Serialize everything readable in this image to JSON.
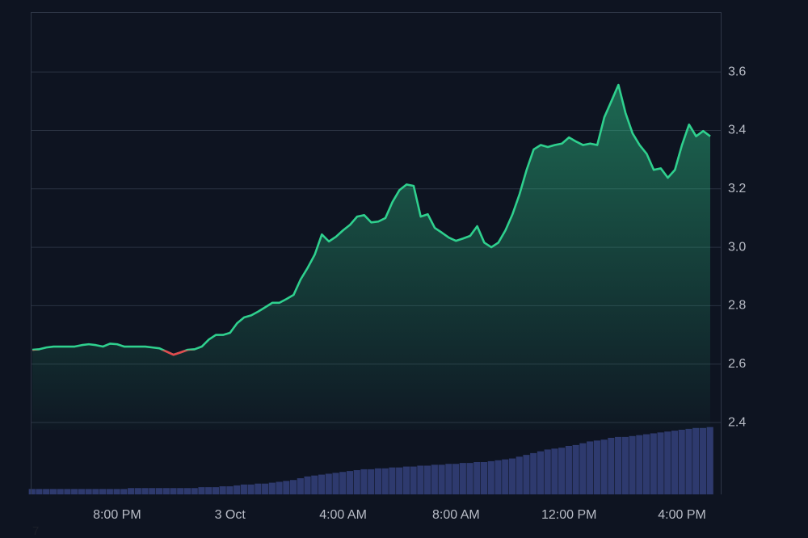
{
  "chart_data": {
    "type": "line",
    "categories": [
      null,
      null,
      null,
      null,
      null,
      null,
      null,
      null,
      null,
      null,
      null,
      null,
      "8:00 PM",
      null,
      null,
      null,
      null,
      null,
      null,
      null,
      null,
      null,
      null,
      null,
      null,
      null,
      null,
      null,
      "3 Oct",
      null,
      null,
      null,
      null,
      null,
      null,
      null,
      null,
      null,
      null,
      null,
      null,
      null,
      null,
      null,
      "4:00 AM",
      null,
      null,
      null,
      null,
      null,
      null,
      null,
      null,
      null,
      null,
      null,
      null,
      null,
      null,
      null,
      "8:00 AM",
      null,
      null,
      null,
      null,
      null,
      null,
      null,
      null,
      null,
      null,
      null,
      null,
      null,
      null,
      null,
      "12:00 PM",
      null,
      null,
      null,
      null,
      null,
      null,
      null,
      null,
      null,
      null,
      null,
      null,
      null,
      null,
      null,
      "4:00 PM",
      null,
      null,
      null,
      null
    ],
    "series": [
      {
        "color": "#2fd08e",
        "down_color": "#e5484d",
        "values": [
          2.649,
          2.651,
          2.657,
          2.66,
          2.66,
          2.66,
          2.66,
          2.665,
          2.668,
          2.665,
          2.66,
          2.67,
          2.668,
          2.66,
          2.66,
          2.66,
          2.66,
          2.657,
          2.654,
          2.643,
          2.632,
          2.64,
          2.649,
          2.651,
          2.66,
          2.684,
          2.7,
          2.7,
          2.707,
          2.74,
          2.76,
          2.767,
          2.78,
          2.795,
          2.81,
          2.81,
          2.823,
          2.837,
          2.89,
          2.93,
          2.975,
          3.044,
          3.02,
          3.036,
          3.058,
          3.077,
          3.105,
          3.11,
          3.085,
          3.088,
          3.1,
          3.155,
          3.196,
          3.215,
          3.21,
          3.105,
          3.113,
          3.066,
          3.05,
          3.033,
          3.022,
          3.03,
          3.039,
          3.072,
          3.016,
          3.0,
          3.016,
          3.058,
          3.113,
          3.182,
          3.265,
          3.335,
          3.35,
          3.343,
          3.35,
          3.355,
          3.376,
          3.362,
          3.35,
          3.355,
          3.35,
          3.445,
          3.5,
          3.556,
          3.46,
          3.39,
          3.35,
          3.32,
          3.265,
          3.27,
          3.238,
          3.265,
          3.35,
          3.42,
          3.38,
          3.398,
          3.38
        ]
      },
      {
        "type": "bar",
        "color": "#2e3a6e",
        "axis": "volume",
        "values": [
          6,
          6,
          6,
          6,
          6,
          6,
          6,
          6,
          6,
          6,
          6,
          6,
          6,
          6,
          7,
          7,
          7,
          7,
          7,
          7,
          7,
          7,
          7,
          7,
          8,
          8,
          8,
          9,
          9,
          10,
          11,
          11,
          12,
          12,
          13,
          14,
          15,
          16,
          18,
          20,
          21,
          22,
          23,
          24,
          25,
          26,
          27,
          28,
          28,
          29,
          29,
          30,
          30,
          31,
          31,
          32,
          32,
          33,
          33,
          34,
          34,
          35,
          35,
          36,
          36,
          37,
          38,
          39,
          40,
          42,
          44,
          46,
          48,
          50,
          51,
          52,
          54,
          55,
          57,
          59,
          60,
          61,
          63,
          64,
          64,
          65,
          66,
          67,
          68,
          69,
          70,
          71,
          72,
          73,
          74,
          74,
          75
        ]
      }
    ],
    "ylim": [
      2.154,
      3.805
    ],
    "yticks": [
      2.4,
      2.6,
      {
        "value": 2.8,
        "label": "2.8"
      },
      {
        "value": 3,
        "label": "3.0"
      },
      3.2,
      3.4,
      3.6
    ],
    "volume_lim": [
      0,
      90
    ],
    "grid": true
  },
  "footer_text": "7"
}
